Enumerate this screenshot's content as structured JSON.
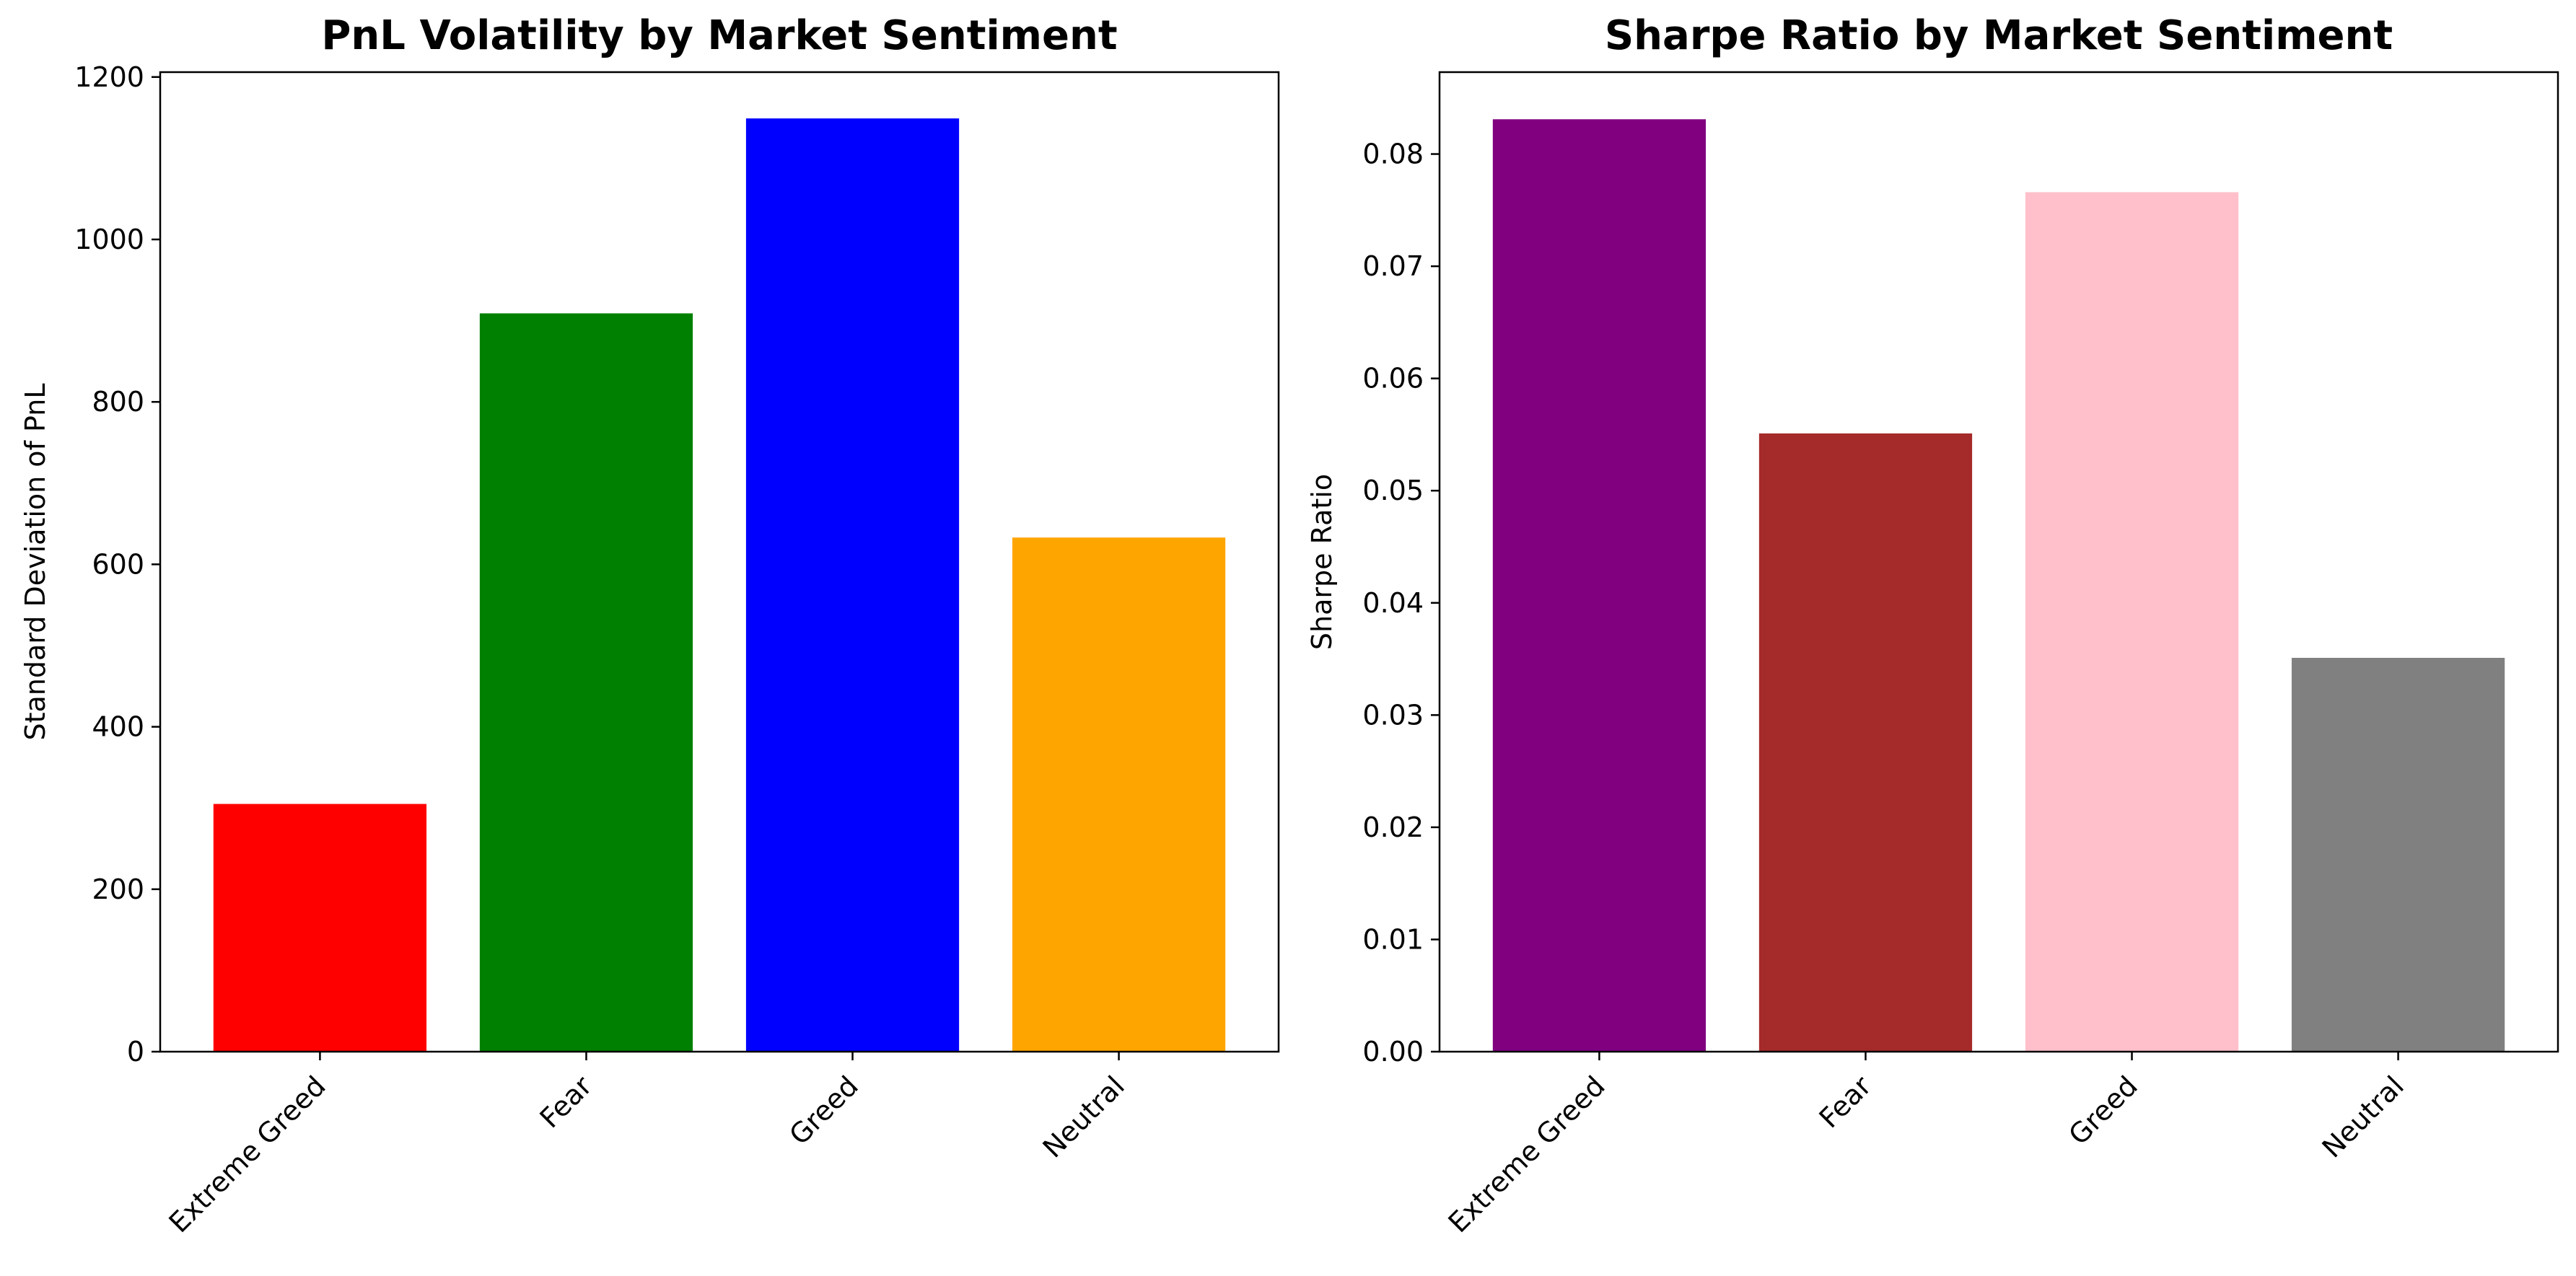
{
  "chart_data": [
    {
      "type": "bar",
      "title": "PnL Volatility by Market Sentiment",
      "xlabel": "",
      "ylabel": "Standard Deviation of PnL",
      "categories": [
        "Extreme Greed",
        "Fear",
        "Greed",
        "Neutral"
      ],
      "values": [
        305,
        909,
        1149,
        633
      ],
      "colors": [
        "#ff0000",
        "#008000",
        "#0000ff",
        "#ffa500"
      ],
      "ylim": [
        0,
        1206
      ],
      "yticks": [
        0,
        200,
        400,
        600,
        800,
        1000,
        1200
      ],
      "ytick_labels": [
        "0",
        "200",
        "400",
        "600",
        "800",
        "1000",
        "1200"
      ],
      "grid": false,
      "legend": "none"
    },
    {
      "type": "bar",
      "title": "Sharpe Ratio by Market Sentiment",
      "xlabel": "",
      "ylabel": "Sharpe Ratio",
      "categories": [
        "Extreme Greed",
        "Fear",
        "Greed",
        "Neutral"
      ],
      "values": [
        0.0831,
        0.0551,
        0.0766,
        0.0351
      ],
      "colors": [
        "#800080",
        "#a52a2a",
        "#ffc0cb",
        "#808080"
      ],
      "ylim": [
        0,
        0.0873
      ],
      "yticks": [
        0,
        0.01,
        0.02,
        0.03,
        0.04,
        0.05,
        0.06,
        0.07,
        0.08
      ],
      "ytick_labels": [
        "0.00",
        "0.01",
        "0.02",
        "0.03",
        "0.04",
        "0.05",
        "0.06",
        "0.07",
        "0.08"
      ],
      "grid": false,
      "legend": "none"
    }
  ]
}
